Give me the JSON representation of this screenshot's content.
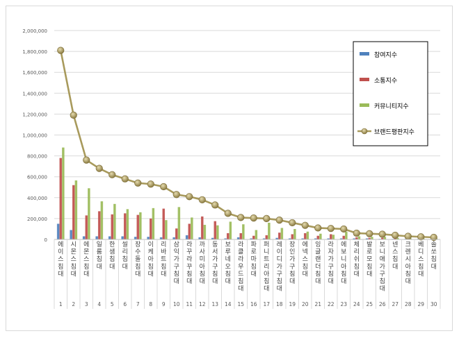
{
  "chart_data": {
    "type": "bar",
    "title": "",
    "xlabel": "",
    "ylabel": "",
    "ylim": [
      0,
      2000000
    ],
    "y_ticks": [
      "0",
      "200,000",
      "400,000",
      "600,000",
      "800,000",
      "1,000,000",
      "1,200,000",
      "1,400,000",
      "1,600,000",
      "1,800,000",
      "2,000,000"
    ],
    "grid": true,
    "legend_position": "right",
    "ranks": [
      "1",
      "2",
      "3",
      "4",
      "5",
      "6",
      "7",
      "8",
      "9",
      "10",
      "11",
      "12",
      "13",
      "14",
      "15",
      "16",
      "17",
      "18",
      "19",
      "20",
      "21",
      "22",
      "23",
      "24",
      "25",
      "26",
      "27",
      "28",
      "29",
      "30"
    ],
    "categories": [
      "에이스침대",
      "시몬스침대",
      "에몬스침대",
      "일룸침대",
      "한샘침대",
      "씰리침대",
      "장수돌침대",
      "이케아침대",
      "리바트침대",
      "삼익가구침대",
      "라꾸라꾸침대",
      "까사미아침대",
      "동서가구침대",
      "보루네오침대",
      "라클라우드침대",
      "파로마침대",
      "퍼니트리아침대",
      "레이디가구침대",
      "장인가구침대",
      "에넥스침대",
      "잉글랜더침대",
      "라자가구침대",
      "에보니아침대",
      "체리쉬침대",
      "발로모침대",
      "보니애가구침대",
      "넨스침대",
      "크렌시아침대",
      "베디스침대",
      "솔쏘침대"
    ],
    "series": [
      {
        "name": "참여지수",
        "color": "#4f81bd",
        "values": [
          150000,
          90000,
          30000,
          30000,
          30000,
          30000,
          25000,
          25000,
          20000,
          20000,
          40000,
          20000,
          15000,
          10000,
          20000,
          10000,
          10000,
          15000,
          10000,
          10000,
          10000,
          10000,
          10000,
          10000,
          10000,
          5000,
          5000,
          5000,
          5000,
          5000
        ]
      },
      {
        "name": "소통지수",
        "color": "#c0504d",
        "values": [
          780000,
          520000,
          230000,
          270000,
          240000,
          250000,
          235000,
          200000,
          295000,
          105000,
          150000,
          220000,
          175000,
          60000,
          60000,
          35000,
          40000,
          65000,
          50000,
          60000,
          35000,
          50000,
          35000,
          20000,
          15000,
          15000,
          10000,
          5000,
          5000,
          5000
        ]
      },
      {
        "name": "커뮤니티지수",
        "color": "#9bbb59",
        "values": [
          880000,
          565000,
          490000,
          365000,
          340000,
          290000,
          260000,
          300000,
          185000,
          310000,
          210000,
          140000,
          135000,
          170000,
          145000,
          90000,
          160000,
          110000,
          100000,
          75000,
          55000,
          45000,
          75000,
          30000,
          25000,
          25000,
          15000,
          10000,
          10000,
          10000
        ]
      },
      {
        "name": "브랜드평판지수",
        "color": "#9c8b52",
        "values": [
          1810000,
          1190000,
          760000,
          680000,
          620000,
          580000,
          540000,
          530000,
          505000,
          430000,
          410000,
          380000,
          330000,
          250000,
          210000,
          205000,
          200000,
          185000,
          160000,
          135000,
          110000,
          105000,
          100000,
          60000,
          55000,
          50000,
          40000,
          30000,
          25000,
          20000
        ]
      }
    ]
  }
}
